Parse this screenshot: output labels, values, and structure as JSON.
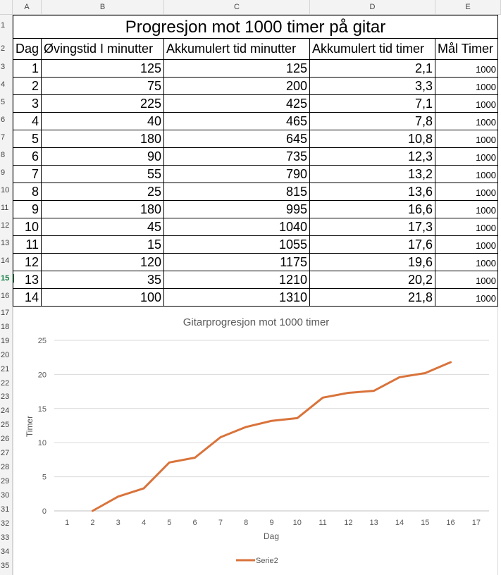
{
  "columns": [
    "A",
    "B",
    "C",
    "D",
    "E"
  ],
  "rows": [
    "1",
    "2",
    "3",
    "4",
    "5",
    "6",
    "7",
    "8",
    "9",
    "10",
    "11",
    "12",
    "13",
    "14",
    "15",
    "16",
    "17",
    "18",
    "19",
    "20",
    "21",
    "22",
    "23",
    "24",
    "25",
    "26",
    "27",
    "28",
    "29",
    "30",
    "31",
    "32",
    "33",
    "34",
    "35"
  ],
  "active_row": "15",
  "sheet": {
    "title": "Progresjon mot 1000 timer på gitar",
    "headers": [
      "Dag",
      "Øvingstid I minutter",
      "Akkumulert tid minutter",
      "Akkumulert tid timer",
      "Mål Timer"
    ],
    "data": [
      [
        "1",
        "125",
        "125",
        "2,1",
        "1000"
      ],
      [
        "2",
        "75",
        "200",
        "3,3",
        "1000"
      ],
      [
        "3",
        "225",
        "425",
        "7,1",
        "1000"
      ],
      [
        "4",
        "40",
        "465",
        "7,8",
        "1000"
      ],
      [
        "5",
        "180",
        "645",
        "10,8",
        "1000"
      ],
      [
        "6",
        "90",
        "735",
        "12,3",
        "1000"
      ],
      [
        "7",
        "55",
        "790",
        "13,2",
        "1000"
      ],
      [
        "8",
        "25",
        "815",
        "13,6",
        "1000"
      ],
      [
        "9",
        "180",
        "995",
        "16,6",
        "1000"
      ],
      [
        "10",
        "45",
        "1040",
        "17,3",
        "1000"
      ],
      [
        "11",
        "15",
        "1055",
        "17,6",
        "1000"
      ],
      [
        "12",
        "120",
        "1175",
        "19,6",
        "1000"
      ],
      [
        "13",
        "35",
        "1210",
        "20,2",
        "1000"
      ],
      [
        "14",
        "100",
        "1310",
        "21,8",
        "1000"
      ]
    ]
  },
  "chart_data": {
    "type": "line",
    "title": "Gitarprogresjon mot 1000 timer",
    "xlabel": "Dag",
    "ylabel": "Timer",
    "categories": [
      "1",
      "2",
      "3",
      "4",
      "5",
      "6",
      "7",
      "8",
      "9",
      "10",
      "11",
      "12",
      "13",
      "14",
      "15",
      "16",
      "17"
    ],
    "y_ticks": [
      "0",
      "5",
      "10",
      "15",
      "20",
      "25"
    ],
    "ylim": [
      0,
      25
    ],
    "grid": true,
    "legend_position": "bottom",
    "series": [
      {
        "name": "Serie2",
        "color": "#d9733b",
        "x": [
          2,
          3,
          4,
          5,
          6,
          7,
          8,
          9,
          10,
          11,
          12,
          13,
          14,
          15,
          16
        ],
        "values": [
          0,
          2.1,
          3.3,
          7.1,
          7.8,
          10.8,
          12.3,
          13.2,
          13.6,
          16.6,
          17.3,
          17.6,
          19.6,
          20.2,
          21.8
        ]
      }
    ]
  }
}
